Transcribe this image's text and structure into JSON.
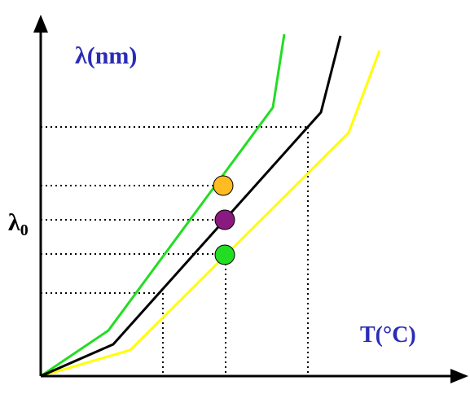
{
  "labels": {
    "y_axis": "λ(nm)",
    "x_axis": "T(°C)",
    "lambda0_symbol": "λ",
    "lambda0_subscript": "0"
  },
  "colors": {
    "axis": "#000000",
    "axis_label": "#2b2bb8",
    "green_curve": "#22dd22",
    "black_curve": "#000000",
    "yellow_curve": "#ffff00",
    "dotted_guides": "#000000",
    "marker_orange": "#ffbb22",
    "marker_purple": "#8a1a80",
    "marker_green": "#22dd22"
  },
  "elements": {
    "curves": [
      "green-curve",
      "black-curve",
      "yellow-curve"
    ],
    "markers": [
      "orange-marker",
      "purple-marker",
      "green-marker"
    ]
  }
}
